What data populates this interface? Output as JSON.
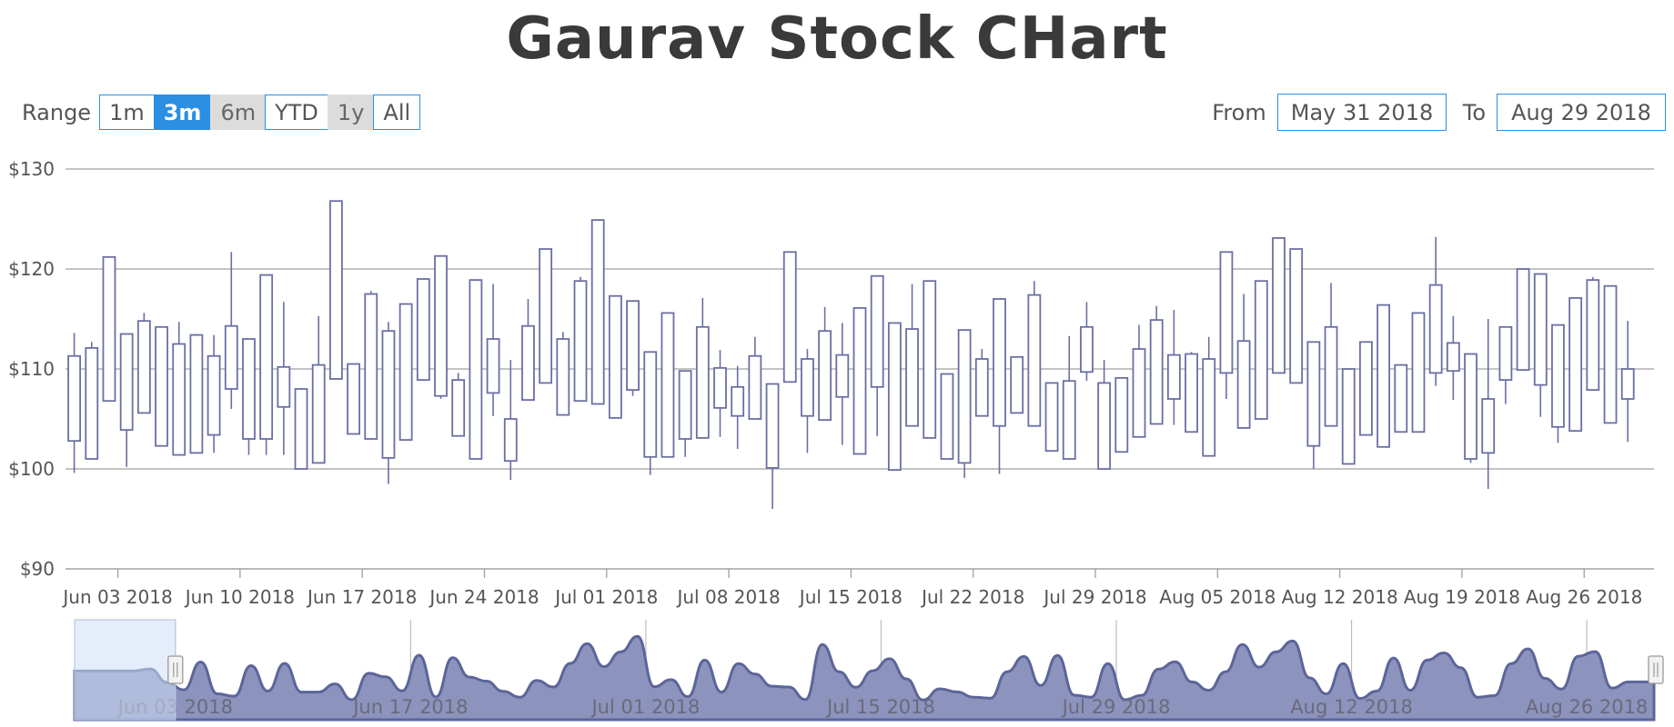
{
  "title": "Gaurav Stock CHart",
  "range_selector": {
    "label": "Range",
    "buttons": [
      {
        "label": "1m",
        "state": "normal"
      },
      {
        "label": "3m",
        "state": "selected"
      },
      {
        "label": "6m",
        "state": "disabled"
      },
      {
        "label": "YTD",
        "state": "normal"
      },
      {
        "label": "1y",
        "state": "disabled"
      },
      {
        "label": "All",
        "state": "normal"
      }
    ]
  },
  "date_range": {
    "from_label": "From",
    "from_value": "May 31 2018",
    "to_label": "To",
    "to_value": "Aug 29 2018"
  },
  "colors": {
    "candle": "#6a6fa3",
    "grid": "#a0a0a0",
    "navigator_fill": "#8c93bd",
    "navigator_line": "#5c6599",
    "accent": "#2b8fe4"
  },
  "chart_data": {
    "type": "candlestick",
    "title": "Gaurav Stock CHart",
    "y_tick_labels": [
      "$90",
      "$100",
      "$110",
      "$120",
      "$130"
    ],
    "ylim": [
      90,
      130
    ],
    "x_range": [
      "2018-05-31",
      "2018-08-29"
    ],
    "x_tick_labels": [
      "Jun 03 2018",
      "Jun 10 2018",
      "Jun 17 2018",
      "Jun 24 2018",
      "Jul 01 2018",
      "Jul 08 2018",
      "Jul 15 2018",
      "Jul 22 2018",
      "Jul 29 2018",
      "Aug 05 2018",
      "Aug 12 2018",
      "Aug 19 2018",
      "Aug 26 2018"
    ],
    "grid": true,
    "candles": [
      {
        "date": "2018-05-31",
        "open": 102.8,
        "high": 113.6,
        "low": 99.6,
        "close": 111.3
      },
      {
        "date": "2018-06-01",
        "open": 101.0,
        "high": 112.7,
        "low": 101.0,
        "close": 112.1
      },
      {
        "date": "2018-06-02",
        "open": 121.2,
        "high": 121.2,
        "low": 106.8,
        "close": 106.8
      },
      {
        "date": "2018-06-03",
        "open": 113.5,
        "high": 113.5,
        "low": 100.2,
        "close": 103.9
      },
      {
        "date": "2018-06-04",
        "open": 105.6,
        "high": 115.6,
        "low": 105.6,
        "close": 114.8
      },
      {
        "date": "2018-06-05",
        "open": 114.2,
        "high": 114.2,
        "low": 102.3,
        "close": 102.3
      },
      {
        "date": "2018-06-06",
        "open": 112.5,
        "high": 114.7,
        "low": 101.4,
        "close": 101.4
      },
      {
        "date": "2018-06-07",
        "open": 101.6,
        "high": 113.5,
        "low": 101.6,
        "close": 113.4
      },
      {
        "date": "2018-06-08",
        "open": 111.3,
        "high": 113.4,
        "low": 101.6,
        "close": 103.4
      },
      {
        "date": "2018-06-09",
        "open": 108.0,
        "high": 121.7,
        "low": 106.0,
        "close": 114.3
      },
      {
        "date": "2018-06-10",
        "open": 113.0,
        "high": 113.0,
        "low": 101.4,
        "close": 103.0
      },
      {
        "date": "2018-06-11",
        "open": 119.4,
        "high": 119.4,
        "low": 101.4,
        "close": 103.0
      },
      {
        "date": "2018-06-12",
        "open": 110.2,
        "high": 116.7,
        "low": 101.4,
        "close": 106.2
      },
      {
        "date": "2018-06-13",
        "open": 108.0,
        "high": 108.0,
        "low": 100.0,
        "close": 100.0
      },
      {
        "date": "2018-06-14",
        "open": 100.6,
        "high": 115.3,
        "low": 100.6,
        "close": 110.4
      },
      {
        "date": "2018-06-15",
        "open": 126.8,
        "high": 126.8,
        "low": 109.0,
        "close": 109.0
      },
      {
        "date": "2018-06-16",
        "open": 110.5,
        "high": 110.5,
        "low": 103.5,
        "close": 103.5
      },
      {
        "date": "2018-06-17",
        "open": 103.0,
        "high": 117.8,
        "low": 103.0,
        "close": 117.5
      },
      {
        "date": "2018-06-18",
        "open": 113.8,
        "high": 114.7,
        "low": 98.5,
        "close": 101.1
      },
      {
        "date": "2018-06-19",
        "open": 102.9,
        "high": 116.5,
        "low": 102.9,
        "close": 116.5
      },
      {
        "date": "2018-06-20",
        "open": 119.0,
        "high": 119.0,
        "low": 108.9,
        "close": 108.9
      },
      {
        "date": "2018-06-21",
        "open": 121.3,
        "high": 121.3,
        "low": 107.0,
        "close": 107.3
      },
      {
        "date": "2018-06-22",
        "open": 108.9,
        "high": 109.6,
        "low": 103.3,
        "close": 103.3
      },
      {
        "date": "2018-06-23",
        "open": 118.9,
        "high": 118.9,
        "low": 101.0,
        "close": 101.0
      },
      {
        "date": "2018-06-24",
        "open": 113.0,
        "high": 118.5,
        "low": 105.3,
        "close": 107.6
      },
      {
        "date": "2018-06-25",
        "open": 100.8,
        "high": 110.9,
        "low": 98.9,
        "close": 105.0
      },
      {
        "date": "2018-06-26",
        "open": 106.9,
        "high": 117.0,
        "low": 106.9,
        "close": 114.3
      },
      {
        "date": "2018-06-27",
        "open": 108.6,
        "high": 122.0,
        "low": 108.6,
        "close": 122.0
      },
      {
        "date": "2018-06-28",
        "open": 105.4,
        "high": 113.7,
        "low": 105.4,
        "close": 113.0
      },
      {
        "date": "2018-06-29",
        "open": 106.8,
        "high": 119.2,
        "low": 106.8,
        "close": 118.8
      },
      {
        "date": "2018-06-30",
        "open": 106.5,
        "high": 124.9,
        "low": 106.5,
        "close": 124.9
      },
      {
        "date": "2018-07-01",
        "open": 117.3,
        "high": 117.3,
        "low": 105.1,
        "close": 105.1
      },
      {
        "date": "2018-07-02",
        "open": 116.8,
        "high": 116.8,
        "low": 107.3,
        "close": 107.9
      },
      {
        "date": "2018-07-03",
        "open": 111.7,
        "high": 111.7,
        "low": 99.4,
        "close": 101.2
      },
      {
        "date": "2018-07-04",
        "open": 101.2,
        "high": 115.6,
        "low": 101.2,
        "close": 115.6
      },
      {
        "date": "2018-07-05",
        "open": 109.8,
        "high": 109.8,
        "low": 101.2,
        "close": 103.0
      },
      {
        "date": "2018-07-06",
        "open": 103.1,
        "high": 117.1,
        "low": 103.1,
        "close": 114.2
      },
      {
        "date": "2018-07-07",
        "open": 106.1,
        "high": 111.9,
        "low": 103.2,
        "close": 110.1
      },
      {
        "date": "2018-07-08",
        "open": 108.2,
        "high": 110.3,
        "low": 102.0,
        "close": 105.3
      },
      {
        "date": "2018-07-09",
        "open": 111.3,
        "high": 113.2,
        "low": 105.0,
        "close": 105.0
      },
      {
        "date": "2018-07-10",
        "open": 108.5,
        "high": 108.5,
        "low": 96.0,
        "close": 100.1
      },
      {
        "date": "2018-07-11",
        "open": 108.7,
        "high": 121.7,
        "low": 108.7,
        "close": 121.7
      },
      {
        "date": "2018-07-12",
        "open": 105.3,
        "high": 112.0,
        "low": 101.6,
        "close": 111.0
      },
      {
        "date": "2018-07-13",
        "open": 113.8,
        "high": 116.2,
        "low": 104.9,
        "close": 104.9
      },
      {
        "date": "2018-07-14",
        "open": 107.2,
        "high": 114.6,
        "low": 102.4,
        "close": 111.4
      },
      {
        "date": "2018-07-15",
        "open": 101.5,
        "high": 116.1,
        "low": 101.5,
        "close": 116.1
      },
      {
        "date": "2018-07-16",
        "open": 119.3,
        "high": 119.3,
        "low": 103.3,
        "close": 108.2
      },
      {
        "date": "2018-07-17",
        "open": 114.6,
        "high": 114.6,
        "low": 99.9,
        "close": 99.9
      },
      {
        "date": "2018-07-18",
        "open": 114.0,
        "high": 118.5,
        "low": 104.3,
        "close": 104.3
      },
      {
        "date": "2018-07-19",
        "open": 118.8,
        "high": 118.8,
        "low": 103.1,
        "close": 103.1
      },
      {
        "date": "2018-07-20",
        "open": 109.5,
        "high": 109.5,
        "low": 101.0,
        "close": 101.0
      },
      {
        "date": "2018-07-21",
        "open": 113.9,
        "high": 113.9,
        "low": 99.1,
        "close": 100.6
      },
      {
        "date": "2018-07-22",
        "open": 105.3,
        "high": 112.0,
        "low": 105.3,
        "close": 111.0
      },
      {
        "date": "2018-07-23",
        "open": 104.3,
        "high": 117.0,
        "low": 99.5,
        "close": 117.0
      },
      {
        "date": "2018-07-24",
        "open": 111.2,
        "high": 111.2,
        "low": 105.6,
        "close": 105.6
      },
      {
        "date": "2018-07-25",
        "open": 104.3,
        "high": 118.8,
        "low": 104.3,
        "close": 117.4
      },
      {
        "date": "2018-07-26",
        "open": 108.6,
        "high": 108.6,
        "low": 101.8,
        "close": 101.8
      },
      {
        "date": "2018-07-27",
        "open": 108.8,
        "high": 113.3,
        "low": 101.0,
        "close": 101.0
      },
      {
        "date": "2018-07-28",
        "open": 109.7,
        "high": 116.7,
        "low": 108.8,
        "close": 114.2
      },
      {
        "date": "2018-07-29",
        "open": 108.6,
        "high": 110.9,
        "low": 100.0,
        "close": 100.0
      },
      {
        "date": "2018-07-30",
        "open": 109.1,
        "high": 109.1,
        "low": 101.7,
        "close": 101.7
      },
      {
        "date": "2018-07-31",
        "open": 103.2,
        "high": 114.4,
        "low": 103.2,
        "close": 112.0
      },
      {
        "date": "2018-08-01",
        "open": 104.5,
        "high": 116.3,
        "low": 104.5,
        "close": 114.9
      },
      {
        "date": "2018-08-02",
        "open": 111.4,
        "high": 115.9,
        "low": 104.4,
        "close": 107.0
      },
      {
        "date": "2018-08-03",
        "open": 111.5,
        "high": 111.7,
        "low": 103.7,
        "close": 103.7
      },
      {
        "date": "2018-08-04",
        "open": 101.3,
        "high": 113.2,
        "low": 101.3,
        "close": 111.0
      },
      {
        "date": "2018-08-05",
        "open": 109.6,
        "high": 121.7,
        "low": 107.0,
        "close": 121.7
      },
      {
        "date": "2018-08-06",
        "open": 104.1,
        "high": 117.5,
        "low": 104.1,
        "close": 112.8
      },
      {
        "date": "2018-08-07",
        "open": 105.0,
        "high": 118.8,
        "low": 105.0,
        "close": 118.8
      },
      {
        "date": "2018-08-08",
        "open": 109.6,
        "high": 123.1,
        "low": 109.6,
        "close": 123.1
      },
      {
        "date": "2018-08-09",
        "open": 122.0,
        "high": 122.0,
        "low": 108.6,
        "close": 108.6
      },
      {
        "date": "2018-08-10",
        "open": 112.7,
        "high": 112.7,
        "low": 100.0,
        "close": 102.3
      },
      {
        "date": "2018-08-11",
        "open": 104.3,
        "high": 118.6,
        "low": 104.3,
        "close": 114.2
      },
      {
        "date": "2018-08-12",
        "open": 110.0,
        "high": 110.0,
        "low": 100.5,
        "close": 100.5
      },
      {
        "date": "2018-08-13",
        "open": 112.7,
        "high": 112.7,
        "low": 103.4,
        "close": 103.4
      },
      {
        "date": "2018-08-14",
        "open": 102.2,
        "high": 116.4,
        "low": 102.2,
        "close": 116.4
      },
      {
        "date": "2018-08-15",
        "open": 110.4,
        "high": 110.4,
        "low": 103.7,
        "close": 103.7
      },
      {
        "date": "2018-08-16",
        "open": 103.7,
        "high": 115.6,
        "low": 103.7,
        "close": 115.6
      },
      {
        "date": "2018-08-17",
        "open": 109.6,
        "high": 123.2,
        "low": 108.3,
        "close": 118.4
      },
      {
        "date": "2018-08-18",
        "open": 109.8,
        "high": 115.3,
        "low": 106.9,
        "close": 112.6
      },
      {
        "date": "2018-08-19",
        "open": 111.5,
        "high": 111.5,
        "low": 100.6,
        "close": 101.0
      },
      {
        "date": "2018-08-20",
        "open": 107.0,
        "high": 115.0,
        "low": 98.0,
        "close": 101.6
      },
      {
        "date": "2018-08-21",
        "open": 108.9,
        "high": 114.2,
        "low": 106.5,
        "close": 114.2
      },
      {
        "date": "2018-08-22",
        "open": 109.9,
        "high": 120.0,
        "low": 109.9,
        "close": 120.0
      },
      {
        "date": "2018-08-23",
        "open": 119.5,
        "high": 119.5,
        "low": 105.2,
        "close": 108.4
      },
      {
        "date": "2018-08-24",
        "open": 114.4,
        "high": 114.4,
        "low": 102.6,
        "close": 104.2
      },
      {
        "date": "2018-08-25",
        "open": 103.8,
        "high": 117.1,
        "low": 103.8,
        "close": 117.1
      },
      {
        "date": "2018-08-26",
        "open": 107.9,
        "high": 119.2,
        "low": 107.9,
        "close": 118.9
      },
      {
        "date": "2018-08-27",
        "open": 118.3,
        "high": 118.3,
        "low": 104.6,
        "close": 104.6
      },
      {
        "date": "2018-08-28",
        "open": 110.0,
        "high": 114.8,
        "low": 102.7,
        "close": 107.0
      }
    ],
    "navigator": {
      "x_range": [
        "2018-05-28",
        "2018-08-29"
      ],
      "selected_range": [
        "2018-05-28",
        "2018-06-03"
      ],
      "x_tick_labels": [
        "Jun 03 2018",
        "Jun 17 2018",
        "Jul 01 2018",
        "Jul 15 2018",
        "Jul 29 2018",
        "Aug 12 2018",
        "Aug 26 2018"
      ]
    }
  }
}
